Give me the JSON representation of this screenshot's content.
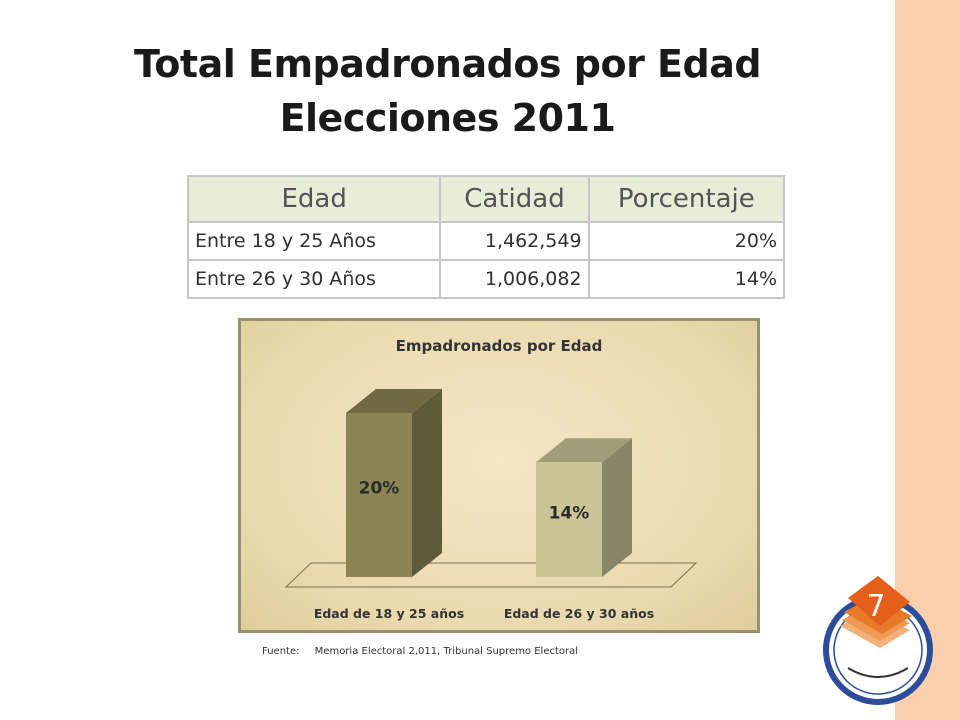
{
  "slide": {
    "title_line1": "Total Empadronados por Edad",
    "title_line2": "Elecciones 2011",
    "source_label": "Fuente:",
    "source_text": "Memoria Electoral 2,011, Tribunal Supremo Electoral",
    "badge_number": "7"
  },
  "table": {
    "headers": [
      "Edad",
      "Catidad",
      "Porcentaje"
    ],
    "rows": [
      [
        "Entre 18 y 25 Años",
        "1,462,549",
        "20%"
      ],
      [
        "Entre 26 y 30 Años",
        "1,006,082",
        "14%"
      ]
    ]
  },
  "chart_data": {
    "type": "bar",
    "title": "Empadronados por Edad",
    "categories": [
      "Edad de 18 y 25 años",
      "Edad de 26 y 30 años"
    ],
    "values": [
      20,
      14
    ],
    "data_labels": [
      "20%",
      "14%"
    ],
    "colors": [
      "#8c8452",
      "#cbc497"
    ],
    "ylim": [
      0,
      25
    ],
    "grid": false,
    "legend": "none",
    "xlabel": "",
    "ylabel": ""
  },
  "colors": {
    "side_band": "#f9cfad",
    "table_header_bg": "#e7edd8",
    "logo_orange": "#e8792a"
  }
}
